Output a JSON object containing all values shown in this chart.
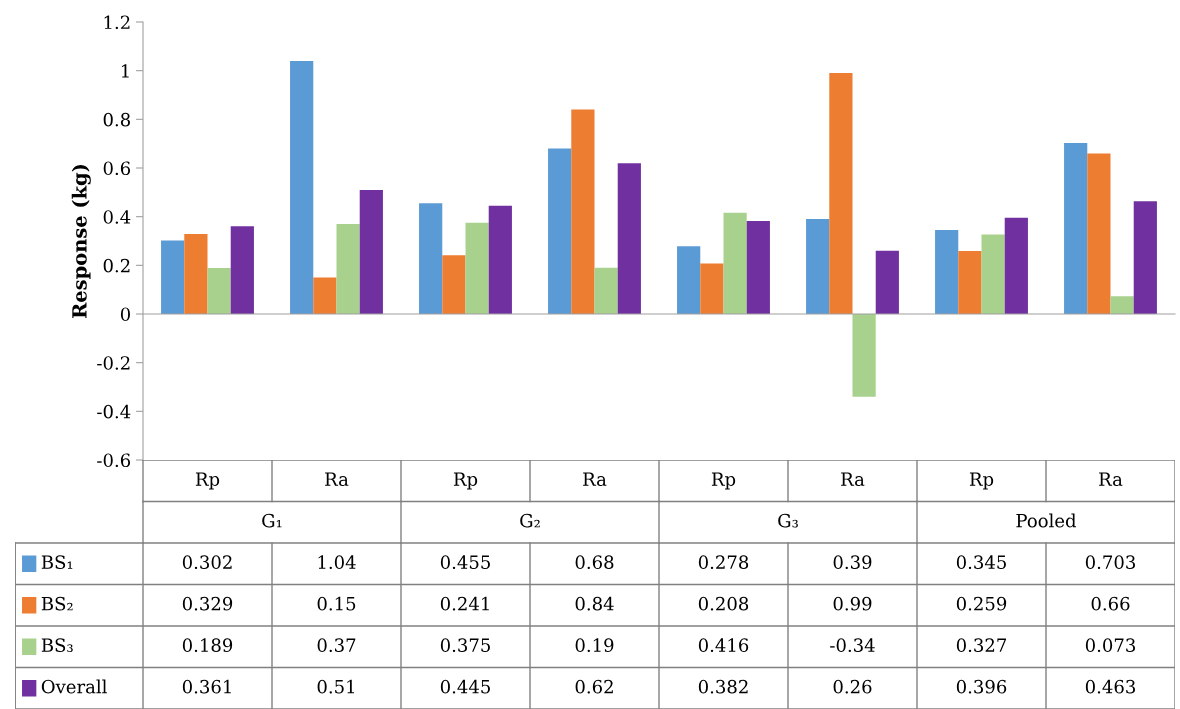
{
  "chart_data": {
    "type": "bar",
    "ylabel": "Response (kg)",
    "categories": [
      "Rp",
      "Ra",
      "Rp",
      "Ra",
      "Rp",
      "Ra",
      "Rp",
      "Ra"
    ],
    "annotations": [
      "G₁",
      "G₂",
      "G₃",
      "Pooled"
    ],
    "series": [
      {
        "name": "BS₁",
        "color": "#5b9bd5",
        "values": [
          0.302,
          1.04,
          0.455,
          0.68,
          0.278,
          0.39,
          0.345,
          0.703
        ]
      },
      {
        "name": "BS₂",
        "color": "#ed7d31",
        "values": [
          0.329,
          0.15,
          0.241,
          0.84,
          0.208,
          0.99,
          0.259,
          0.66
        ]
      },
      {
        "name": "BS₃",
        "color": "#a9d18e",
        "values": [
          0.189,
          0.37,
          0.375,
          0.19,
          0.416,
          -0.34,
          0.327,
          0.073
        ]
      },
      {
        "name": "Overall",
        "color": "#7030a0",
        "values": [
          0.361,
          0.51,
          0.445,
          0.62,
          0.382,
          0.26,
          0.396,
          0.463
        ]
      }
    ],
    "ylim": [
      -0.6,
      1.2
    ],
    "yticks": [
      {
        "value": -0.6,
        "label": "-0.6"
      },
      {
        "value": -0.4,
        "label": "-0.4"
      },
      {
        "value": -0.2,
        "label": "-0.2"
      },
      0,
      0.2,
      0.4,
      0.6,
      0.8,
      1,
      1.2
    ],
    "legend": "bottom",
    "data_labels": true
  }
}
